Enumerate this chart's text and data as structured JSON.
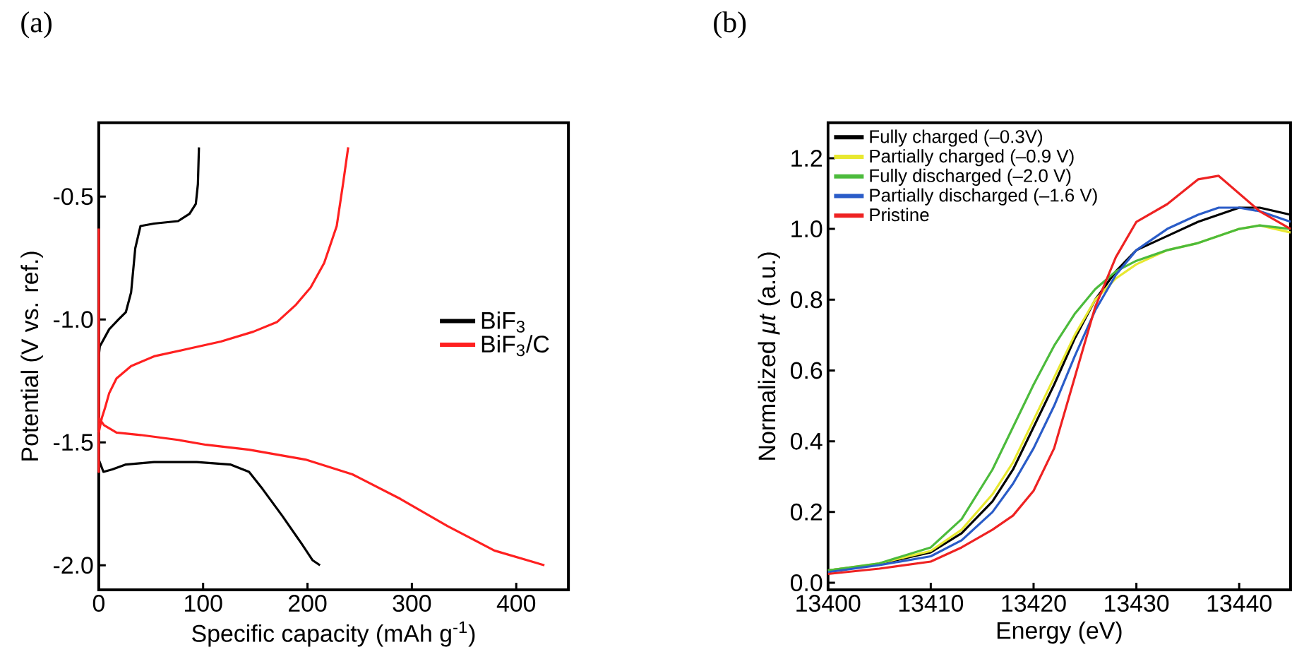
{
  "chart_data": [
    {
      "type": "line",
      "title": "(a)",
      "xlabel": "Specific capacity (mAh g$^{-1}$)",
      "ylabel": "Potential (V vs. ref.)",
      "xlim": [
        0,
        450
      ],
      "ylim": [
        -2.1,
        -0.2
      ],
      "xticks": [
        0,
        100,
        200,
        300,
        400
      ],
      "yticks": [
        {
          "value": -2.0,
          "label": "-2.0"
        },
        -1.5,
        {
          "value": -1.0,
          "label": "-1.0"
        },
        -0.5
      ],
      "legend": "right",
      "series": [
        {
          "name": "BiF$_{3}$",
          "color": "#000000",
          "x": [
            96,
            95,
            93,
            87,
            76,
            53,
            40,
            35,
            31,
            26,
            19,
            10,
            1,
            0,
            0,
            4.5,
            13,
            26,
            53,
            94,
            126,
            144,
            157,
            176,
            194,
            205,
            212
          ],
          "values": [
            -0.3,
            -0.45,
            -0.53,
            -0.57,
            -0.6,
            -0.61,
            -0.62,
            -0.71,
            -0.89,
            -0.97,
            -1.0,
            -1.04,
            -1.11,
            -1.15,
            -1.57,
            -1.62,
            -1.61,
            -1.59,
            -1.58,
            -1.58,
            -1.59,
            -1.62,
            -1.69,
            -1.8,
            -1.91,
            -1.98,
            -2.0
          ]
        },
        {
          "name": "BiF$_{3}$/C",
          "color": "#ff2020",
          "x": [
            0,
            0,
            0,
            5,
            17,
            40,
            76,
            103,
            144,
            198,
            243,
            289,
            334,
            379,
            427
          ],
          "values": [
            -0.63,
            -1.62,
            -1.4,
            -1.43,
            -1.46,
            -1.47,
            -1.49,
            -1.51,
            -1.53,
            -1.57,
            -1.63,
            -1.73,
            -1.84,
            -1.94,
            -2.0
          ]
        },
        {
          "color": "#ff2020",
          "x": [
            0,
            3,
            6,
            10,
            17,
            31,
            53,
            85,
            117,
            148,
            171,
            189,
            203,
            216,
            228,
            234,
            239
          ],
          "values": [
            -1.46,
            -1.4,
            -1.36,
            -1.3,
            -1.24,
            -1.19,
            -1.15,
            -1.12,
            -1.09,
            -1.05,
            -1.01,
            -0.94,
            -0.87,
            -0.77,
            -0.62,
            -0.45,
            -0.3
          ]
        }
      ]
    },
    {
      "type": "line",
      "title": "(b)",
      "xlabel": "Energy (eV)",
      "ylabel": "Normalized *μt* (a.u.)",
      "xlim": [
        13400,
        13445
      ],
      "ylim": [
        -0.02,
        1.3
      ],
      "xticks": [
        13400,
        13410,
        13420,
        13430,
        13440
      ],
      "yticks": [
        {
          "value": 0.0,
          "label": "0.0"
        },
        0.2,
        0.4,
        0.6,
        0.8,
        {
          "value": 1.0,
          "label": "1.0"
        },
        1.2
      ],
      "legend": "top left",
      "x": [
        13400,
        13405,
        13410,
        13413,
        13416,
        13418,
        13420,
        13422,
        13424,
        13426,
        13428,
        13430,
        13433,
        13436,
        13438,
        13440,
        13442,
        13445
      ],
      "series": [
        {
          "name": "Fully charged (–0.3V)",
          "color": "#000000",
          "values": [
            0.035,
            0.053,
            0.086,
            0.14,
            0.23,
            0.32,
            0.44,
            0.56,
            0.69,
            0.8,
            0.88,
            0.94,
            0.98,
            1.02,
            1.04,
            1.06,
            1.06,
            1.04
          ]
        },
        {
          "name": "Partially charged (–0.9 V)",
          "color": "#e8e830",
          "values": [
            0.035,
            0.055,
            0.09,
            0.15,
            0.25,
            0.34,
            0.46,
            0.58,
            0.7,
            0.8,
            0.86,
            0.9,
            0.94,
            0.96,
            0.98,
            1.0,
            1.01,
            0.99
          ]
        },
        {
          "name": "Fully discharged (–2.0 V)",
          "color": "#4cbb3c",
          "values": [
            0.035,
            0.055,
            0.1,
            0.18,
            0.32,
            0.44,
            0.56,
            0.67,
            0.76,
            0.83,
            0.88,
            0.91,
            0.94,
            0.96,
            0.98,
            1.0,
            1.01,
            1.0
          ]
        },
        {
          "name": "Partially discharged (–1.6 V)",
          "color": "#2a5cc8",
          "values": [
            0.03,
            0.05,
            0.075,
            0.12,
            0.2,
            0.28,
            0.38,
            0.5,
            0.64,
            0.77,
            0.87,
            0.94,
            1.0,
            1.04,
            1.06,
            1.06,
            1.05,
            1.02
          ]
        },
        {
          "name": "Pristine",
          "color": "#ee2222",
          "values": [
            0.025,
            0.04,
            0.06,
            0.1,
            0.15,
            0.19,
            0.26,
            0.38,
            0.58,
            0.78,
            0.92,
            1.02,
            1.07,
            1.14,
            1.15,
            1.1,
            1.05,
            1.0
          ]
        }
      ]
    }
  ]
}
